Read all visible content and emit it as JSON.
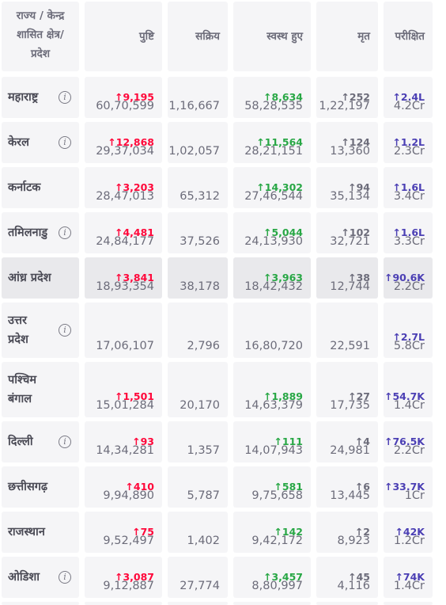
{
  "header": {
    "state_label": "राज्य / केन्द्र\nशासित क्षेत्र/\nप्रदेश",
    "columns": [
      "पुष्टि",
      "सक्रिय",
      "स्वस्थ हुए",
      "मृत",
      "परीक्षित"
    ]
  },
  "colors": {
    "cell_bg": "#f5f5f7",
    "highlight_bg": "#e9e9ec",
    "confirmed_delta": "#ff073a",
    "recovered_delta": "#28a745",
    "deceased_delta": "#6c6c7a",
    "tested_delta": "#4b3fb4"
  },
  "icons": {
    "info": "info-circle-icon",
    "up_arrow": "↑"
  },
  "rows": [
    {
      "state": "महाराष्ट्र",
      "info": true,
      "confirmed_delta": "↑9,195",
      "confirmed": "60,70,599",
      "active": "1,16,667",
      "recovered_delta": "↑8,634",
      "recovered": "58,28,535",
      "deceased_delta": "↑252",
      "deceased": "1,22,197",
      "tested_delta": "↑2.4L",
      "tested": "4.2Cr"
    },
    {
      "state": "केरल",
      "info": true,
      "confirmed_delta": "↑12,868",
      "confirmed": "29,37,034",
      "active": "1,02,057",
      "recovered_delta": "↑11,564",
      "recovered": "28,21,151",
      "deceased_delta": "↑124",
      "deceased": "13,360",
      "tested_delta": "↑1.2L",
      "tested": "2.3Cr"
    },
    {
      "state": "कर्नाटक",
      "info": false,
      "confirmed_delta": "↑3,203",
      "confirmed": "28,47,013",
      "active": "65,312",
      "recovered_delta": "↑14,302",
      "recovered": "27,46,544",
      "deceased_delta": "↑94",
      "deceased": "35,134",
      "tested_delta": "↑1.6L",
      "tested": "3.4Cr"
    },
    {
      "state": "तमिलनाडु",
      "info": true,
      "confirmed_delta": "↑4,481",
      "confirmed": "24,84,177",
      "active": "37,526",
      "recovered_delta": "↑5,044",
      "recovered": "24,13,930",
      "deceased_delta": "↑102",
      "deceased": "32,721",
      "tested_delta": "↑1.6L",
      "tested": "3.3Cr"
    },
    {
      "state": "आंध्र प्रदेश",
      "info": false,
      "confirmed_delta": "↑3,841",
      "confirmed": "18,93,354",
      "active": "38,178",
      "recovered_delta": "↑3,963",
      "recovered": "18,42,432",
      "deceased_delta": "↑38",
      "deceased": "12,744",
      "tested_delta": "↑90.6K",
      "tested": "2.2Cr"
    },
    {
      "state": "उत्तर\nप्रदेश",
      "info": true,
      "confirmed_delta": "",
      "confirmed": "17,06,107",
      "active": "2,796",
      "recovered_delta": "",
      "recovered": "16,80,720",
      "deceased_delta": "",
      "deceased": "22,591",
      "tested_delta": "↑2.7L",
      "tested": "5.8Cr"
    },
    {
      "state": "पश्चिम\nबंगाल",
      "info": false,
      "confirmed_delta": "↑1,501",
      "confirmed": "15,01,284",
      "active": "20,170",
      "recovered_delta": "↑1,889",
      "recovered": "14,63,379",
      "deceased_delta": "↑27",
      "deceased": "17,735",
      "tested_delta": "↑54.7K",
      "tested": "1.4Cr"
    },
    {
      "state": "दिल्ली",
      "info": true,
      "confirmed_delta": "↑93",
      "confirmed": "14,34,281",
      "active": "1,357",
      "recovered_delta": "↑111",
      "recovered": "14,07,943",
      "deceased_delta": "↑4",
      "deceased": "24,981",
      "tested_delta": "↑76.5K",
      "tested": "2.2Cr"
    },
    {
      "state": "छत्तीसगढ़",
      "info": false,
      "confirmed_delta": "↑410",
      "confirmed": "9,94,890",
      "active": "5,787",
      "recovered_delta": "↑581",
      "recovered": "9,75,658",
      "deceased_delta": "↑6",
      "deceased": "13,445",
      "tested_delta": "↑33.7K",
      "tested": "1Cr"
    },
    {
      "state": "राजस्थान",
      "info": false,
      "confirmed_delta": "↑75",
      "confirmed": "9,52,497",
      "active": "1,402",
      "recovered_delta": "↑142",
      "recovered": "9,42,172",
      "deceased_delta": "↑2",
      "deceased": "8,923",
      "tested_delta": "↑42K",
      "tested": "1.2Cr"
    },
    {
      "state": "ओडिशा",
      "info": true,
      "confirmed_delta": "↑3,087",
      "confirmed": "9,12,887",
      "active": "27,774",
      "recovered_delta": "↑3,457",
      "recovered": "8,80,997",
      "deceased_delta": "↑45",
      "deceased": "4,116",
      "tested_delta": "↑74K",
      "tested": "1.4Cr"
    }
  ]
}
